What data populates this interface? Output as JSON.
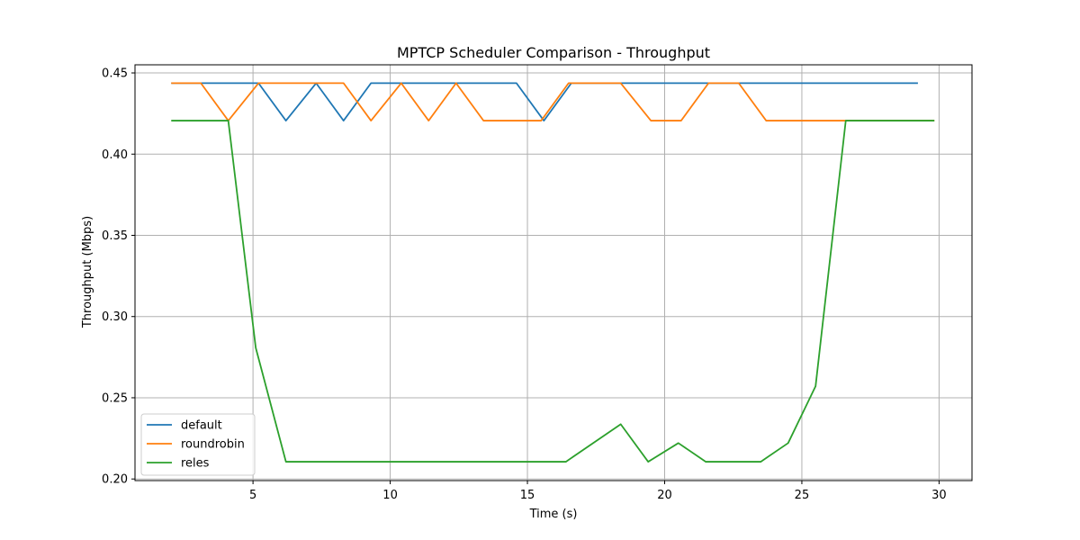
{
  "chart_data": {
    "type": "line",
    "title": "MPTCP Scheduler Comparison - Throughput",
    "xlabel": "Time (s)",
    "ylabel": "Throughput (Mbps)",
    "xlim": [
      0.7,
      31.2
    ],
    "ylim": [
      0.199,
      0.455
    ],
    "xticks": [
      5,
      10,
      15,
      20,
      25,
      30
    ],
    "yticks": [
      0.2,
      0.25,
      0.3,
      0.35,
      0.4,
      0.45
    ],
    "xtick_labels": [
      "5",
      "10",
      "15",
      "20",
      "25",
      "30"
    ],
    "ytick_labels": [
      "0.20",
      "0.25",
      "0.30",
      "0.35",
      "0.40",
      "0.45"
    ],
    "grid": true,
    "legend_position": "lower-left",
    "series": [
      {
        "name": "default",
        "color": "#1f77b4",
        "x": [
          2.05,
          3.1,
          5.2,
          6.2,
          7.3,
          8.3,
          9.3,
          14.6,
          15.6,
          16.6,
          29.2
        ],
        "y": [
          0.4437,
          0.4437,
          0.4437,
          0.4206,
          0.4437,
          0.4206,
          0.4437,
          0.4437,
          0.4206,
          0.4437,
          0.4437
        ]
      },
      {
        "name": "roundrobin",
        "color": "#ff7f0e",
        "x": [
          2.05,
          3.1,
          4.1,
          5.2,
          8.3,
          9.3,
          10.4,
          11.4,
          12.4,
          13.4,
          15.5,
          16.5,
          18.4,
          19.5,
          20.6,
          21.6,
          22.7,
          23.7,
          26.7,
          29.8
        ],
        "y": [
          0.4437,
          0.4437,
          0.4206,
          0.4437,
          0.4437,
          0.4206,
          0.4437,
          0.4206,
          0.4437,
          0.4206,
          0.4206,
          0.4437,
          0.4437,
          0.4206,
          0.4206,
          0.4437,
          0.4437,
          0.4206,
          0.4206,
          0.4206
        ]
      },
      {
        "name": "reles",
        "color": "#2ca02c",
        "x": [
          2.05,
          3.1,
          4.1,
          5.1,
          6.2,
          16.4,
          18.4,
          19.4,
          20.5,
          21.5,
          23.5,
          24.5,
          25.5,
          26.6,
          29.8
        ],
        "y": [
          0.4206,
          0.4206,
          0.4206,
          0.2808,
          0.2106,
          0.2106,
          0.2337,
          0.2106,
          0.2221,
          0.2106,
          0.2106,
          0.2221,
          0.2571,
          0.4206,
          0.4206
        ]
      }
    ]
  }
}
